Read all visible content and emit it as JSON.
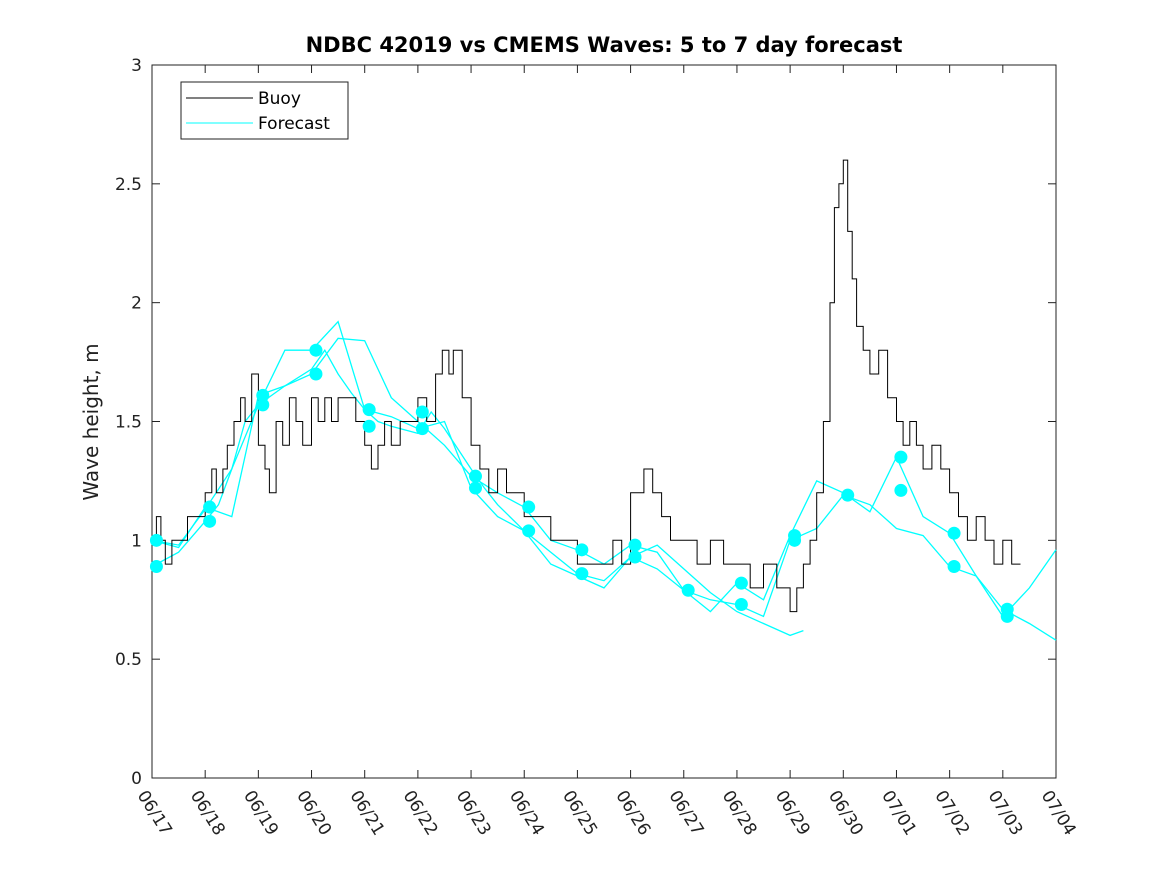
{
  "chart_data": {
    "type": "line",
    "title": "NDBC 42019 vs CMEMS Waves: 5 to 7 day forecast",
    "ylabel": "Wave height, m",
    "xlabel": "",
    "xlim": [
      "06/17",
      "07/04"
    ],
    "ylim": [
      0,
      3
    ],
    "x_unit": "days",
    "x_tick_labels": [
      "06/17",
      "06/18",
      "06/19",
      "06/20",
      "06/21",
      "06/22",
      "06/23",
      "06/24",
      "06/25",
      "06/26",
      "06/27",
      "06/28",
      "06/29",
      "06/30",
      "07/01",
      "07/02",
      "07/03",
      "07/04"
    ],
    "y_ticks": [
      0,
      0.5,
      1,
      1.5,
      2,
      2.5,
      3
    ],
    "y_tick_labels": [
      "0",
      "0.5",
      "1",
      "1.5",
      "2",
      "2.5",
      "3"
    ],
    "legend": {
      "placement": "top-left",
      "entries": [
        {
          "label": "Buoy",
          "color": "#000000"
        },
        {
          "label": "Forecast",
          "color": "#00ffff"
        }
      ]
    },
    "series": [
      {
        "name": "Buoy",
        "color": "#000000",
        "points": [
          [
            "06/17 00:00",
            1.0
          ],
          [
            "06/17 02:00",
            1.1
          ],
          [
            "06/17 04:00",
            1.0
          ],
          [
            "06/17 06:00",
            0.9
          ],
          [
            "06/17 09:00",
            1.0
          ],
          [
            "06/17 12:00",
            1.0
          ],
          [
            "06/17 16:00",
            1.1
          ],
          [
            "06/17 20:00",
            1.1
          ],
          [
            "06/18 00:00",
            1.2
          ],
          [
            "06/18 03:00",
            1.3
          ],
          [
            "06/18 05:00",
            1.2
          ],
          [
            "06/18 08:00",
            1.3
          ],
          [
            "06/18 10:00",
            1.4
          ],
          [
            "06/18 13:00",
            1.5
          ],
          [
            "06/18 16:00",
            1.6
          ],
          [
            "06/18 18:00",
            1.5
          ],
          [
            "06/18 21:00",
            1.7
          ],
          [
            "06/19 00:00",
            1.4
          ],
          [
            "06/19 03:00",
            1.3
          ],
          [
            "06/19 05:00",
            1.2
          ],
          [
            "06/19 08:00",
            1.5
          ],
          [
            "06/19 11:00",
            1.4
          ],
          [
            "06/19 14:00",
            1.6
          ],
          [
            "06/19 17:00",
            1.5
          ],
          [
            "06/19 20:00",
            1.4
          ],
          [
            "06/20 00:00",
            1.6
          ],
          [
            "06/20 03:00",
            1.5
          ],
          [
            "06/20 06:00",
            1.6
          ],
          [
            "06/20 09:00",
            1.5
          ],
          [
            "06/20 12:00",
            1.6
          ],
          [
            "06/20 16:00",
            1.6
          ],
          [
            "06/20 20:00",
            1.5
          ],
          [
            "06/21 00:00",
            1.4
          ],
          [
            "06/21 03:00",
            1.3
          ],
          [
            "06/21 06:00",
            1.4
          ],
          [
            "06/21 09:00",
            1.5
          ],
          [
            "06/21 12:00",
            1.4
          ],
          [
            "06/21 16:00",
            1.5
          ],
          [
            "06/21 20:00",
            1.5
          ],
          [
            "06/22 00:00",
            1.6
          ],
          [
            "06/22 04:00",
            1.5
          ],
          [
            "06/22 08:00",
            1.7
          ],
          [
            "06/22 11:00",
            1.8
          ],
          [
            "06/22 14:00",
            1.7
          ],
          [
            "06/22 16:00",
            1.8
          ],
          [
            "06/22 20:00",
            1.6
          ],
          [
            "06/23 00:00",
            1.4
          ],
          [
            "06/23 04:00",
            1.3
          ],
          [
            "06/23 08:00",
            1.2
          ],
          [
            "06/23 12:00",
            1.3
          ],
          [
            "06/23 16:00",
            1.2
          ],
          [
            "06/23 20:00",
            1.2
          ],
          [
            "06/24 00:00",
            1.1
          ],
          [
            "06/24 06:00",
            1.1
          ],
          [
            "06/24 12:00",
            1.0
          ],
          [
            "06/24 18:00",
            1.0
          ],
          [
            "06/25 00:00",
            0.9
          ],
          [
            "06/25 08:00",
            0.9
          ],
          [
            "06/25 16:00",
            1.0
          ],
          [
            "06/25 20:00",
            0.9
          ],
          [
            "06/26 00:00",
            1.2
          ],
          [
            "06/26 06:00",
            1.3
          ],
          [
            "06/26 10:00",
            1.2
          ],
          [
            "06/26 14:00",
            1.1
          ],
          [
            "06/26 18:00",
            1.0
          ],
          [
            "06/27 00:00",
            1.0
          ],
          [
            "06/27 06:00",
            0.9
          ],
          [
            "06/27 12:00",
            1.0
          ],
          [
            "06/27 18:00",
            0.9
          ],
          [
            "06/28 00:00",
            0.9
          ],
          [
            "06/28 06:00",
            0.8
          ],
          [
            "06/28 12:00",
            0.9
          ],
          [
            "06/28 18:00",
            0.8
          ],
          [
            "06/29 00:00",
            0.7
          ],
          [
            "06/29 03:00",
            0.8
          ],
          [
            "06/29 06:00",
            0.9
          ],
          [
            "06/29 09:00",
            1.0
          ],
          [
            "06/29 12:00",
            1.2
          ],
          [
            "06/29 15:00",
            1.5
          ],
          [
            "06/29 18:00",
            2.0
          ],
          [
            "06/29 20:00",
            2.4
          ],
          [
            "06/29 22:00",
            2.5
          ],
          [
            "06/30 00:00",
            2.6
          ],
          [
            "06/30 02:00",
            2.3
          ],
          [
            "06/30 04:00",
            2.1
          ],
          [
            "06/30 06:00",
            1.9
          ],
          [
            "06/30 09:00",
            1.8
          ],
          [
            "06/30 12:00",
            1.7
          ],
          [
            "06/30 16:00",
            1.8
          ],
          [
            "06/30 20:00",
            1.6
          ],
          [
            "07/01 00:00",
            1.5
          ],
          [
            "07/01 03:00",
            1.4
          ],
          [
            "07/01 06:00",
            1.5
          ],
          [
            "07/01 09:00",
            1.4
          ],
          [
            "07/01 12:00",
            1.3
          ],
          [
            "07/01 16:00",
            1.4
          ],
          [
            "07/01 20:00",
            1.3
          ],
          [
            "07/02 00:00",
            1.2
          ],
          [
            "07/02 04:00",
            1.1
          ],
          [
            "07/02 08:00",
            1.0
          ],
          [
            "07/02 12:00",
            1.1
          ],
          [
            "07/02 16:00",
            1.0
          ],
          [
            "07/02 20:00",
            0.9
          ],
          [
            "07/03 00:00",
            1.0
          ],
          [
            "07/03 04:00",
            0.9
          ],
          [
            "07/03 08:00",
            0.9
          ]
        ]
      },
      {
        "name": "Forecast",
        "color": "#00ffff",
        "runs": [
          [
            [
              "06/17 00:00",
              0.89
            ],
            [
              "06/17 12:00",
              0.95
            ],
            [
              "06/18 00:00",
              1.08
            ],
            [
              "06/18 06:00",
              1.15
            ],
            [
              "06/18 12:00",
              1.3
            ],
            [
              "06/18 18:00",
              1.5
            ],
            [
              "06/19 00:00",
              1.57
            ],
            [
              "06/19 12:00",
              1.65
            ],
            [
              "06/20 00:00",
              1.72
            ],
            [
              "06/20 06:00",
              1.8
            ],
            [
              "06/20 12:00",
              1.7
            ],
            [
              "06/20 18:00",
              1.62
            ],
            [
              "06/21 00:00",
              1.55
            ],
            [
              "06/21 06:00",
              1.5
            ],
            [
              "06/21 12:00",
              1.48
            ],
            [
              "06/22 00:00",
              1.45
            ],
            [
              "06/22 06:00",
              1.54
            ],
            [
              "06/22 12:00",
              1.47
            ],
            [
              "06/23 00:00",
              1.3
            ],
            [
              "06/23 06:00",
              1.22
            ],
            [
              "06/23 12:00",
              1.15
            ],
            [
              "06/24 00:00",
              1.04
            ],
            [
              "06/24 12:00",
              0.95
            ],
            [
              "06/25 00:00",
              0.86
            ],
            [
              "06/25 12:00",
              0.83
            ],
            [
              "06/26 00:00",
              0.93
            ],
            [
              "06/26 12:00",
              0.98
            ],
            [
              "06/27 00:00",
              0.88
            ],
            [
              "06/27 12:00",
              0.78
            ],
            [
              "06/28 00:00",
              0.7
            ],
            [
              "06/28 12:00",
              0.65
            ],
            [
              "06/29 00:00",
              0.6
            ],
            [
              "06/29 06:00",
              0.62
            ]
          ],
          [
            [
              "06/17 00:00",
              1.0
            ],
            [
              "06/17 12:00",
              0.97
            ],
            [
              "06/18 00:00",
              1.14
            ],
            [
              "06/18 12:00",
              1.1
            ],
            [
              "06/19 00:00",
              1.61
            ],
            [
              "06/19 12:00",
              1.65
            ],
            [
              "06/20 00:00",
              1.7
            ],
            [
              "06/20 12:00",
              1.85
            ],
            [
              "06/21 00:00",
              1.84
            ],
            [
              "06/21 12:00",
              1.6
            ],
            [
              "06/22 00:00",
              1.5
            ],
            [
              "06/22 12:00",
              1.4
            ],
            [
              "06/23 00:00",
              1.27
            ],
            [
              "06/23 12:00",
              1.2
            ],
            [
              "06/24 00:00",
              1.14
            ],
            [
              "06/24 12:00",
              1.0
            ],
            [
              "06/25 00:00",
              0.96
            ],
            [
              "06/25 12:00",
              0.9
            ],
            [
              "06/26 00:00",
              0.98
            ],
            [
              "06/26 12:00",
              0.95
            ],
            [
              "06/27 00:00",
              0.79
            ],
            [
              "06/27 12:00",
              0.75
            ],
            [
              "06/28 00:00",
              0.73
            ],
            [
              "06/28 12:00",
              0.68
            ],
            [
              "06/29 00:00",
              1.0
            ],
            [
              "06/29 12:00",
              1.05
            ],
            [
              "06/30 00:00",
              1.19
            ],
            [
              "06/30 12:00",
              1.15
            ],
            [
              "07/01 00:00",
              1.05
            ],
            [
              "07/01 12:00",
              1.02
            ],
            [
              "07/02 00:00",
              0.89
            ],
            [
              "07/02 12:00",
              0.85
            ],
            [
              "07/03 00:00",
              0.71
            ],
            [
              "07/03 12:00",
              0.65
            ],
            [
              "07/04 00:00",
              0.58
            ]
          ],
          [
            [
              "06/17 00:00",
              1.0
            ],
            [
              "06/17 12:00",
              0.98
            ],
            [
              "06/18 00:00",
              1.13
            ],
            [
              "06/18 12:00",
              1.3
            ],
            [
              "06/19 00:00",
              1.57
            ],
            [
              "06/19 12:00",
              1.8
            ],
            [
              "06/20 00:00",
              1.8
            ],
            [
              "06/20 12:00",
              1.92
            ],
            [
              "06/21 00:00",
              1.55
            ],
            [
              "06/21 12:00",
              1.52
            ],
            [
              "06/22 00:00",
              1.47
            ],
            [
              "06/22 12:00",
              1.5
            ],
            [
              "06/23 00:00",
              1.22
            ],
            [
              "06/23 12:00",
              1.1
            ],
            [
              "06/24 00:00",
              1.04
            ],
            [
              "06/24 12:00",
              0.9
            ],
            [
              "06/25 00:00",
              0.85
            ],
            [
              "06/25 12:00",
              0.8
            ],
            [
              "06/26 00:00",
              0.93
            ],
            [
              "06/26 12:00",
              0.88
            ],
            [
              "06/27 00:00",
              0.79
            ],
            [
              "06/27 12:00",
              0.7
            ],
            [
              "06/28 00:00",
              0.82
            ],
            [
              "06/28 12:00",
              0.75
            ],
            [
              "06/29 00:00",
              1.02
            ],
            [
              "06/29 12:00",
              1.25
            ],
            [
              "06/30 00:00",
              1.2
            ],
            [
              "06/30 12:00",
              1.12
            ],
            [
              "07/01 00:00",
              1.35
            ],
            [
              "07/01 12:00",
              1.1
            ],
            [
              "07/02 00:00",
              1.03
            ],
            [
              "07/02 12:00",
              0.85
            ],
            [
              "07/03 00:00",
              0.68
            ],
            [
              "07/03 12:00",
              0.8
            ],
            [
              "07/04 00:00",
              0.96
            ]
          ]
        ],
        "markers": [
          [
            "06/17 02:00",
            1.0
          ],
          [
            "06/17 02:00",
            0.89
          ],
          [
            "06/18 02:00",
            1.14
          ],
          [
            "06/18 02:00",
            1.08
          ],
          [
            "06/19 02:00",
            1.61
          ],
          [
            "06/19 02:00",
            1.57
          ],
          [
            "06/20 02:00",
            1.8
          ],
          [
            "06/20 02:00",
            1.7
          ],
          [
            "06/21 02:00",
            1.55
          ],
          [
            "06/21 02:00",
            1.48
          ],
          [
            "06/22 02:00",
            1.54
          ],
          [
            "06/22 02:00",
            1.47
          ],
          [
            "06/23 02:00",
            1.27
          ],
          [
            "06/23 02:00",
            1.22
          ],
          [
            "06/24 02:00",
            1.14
          ],
          [
            "06/24 02:00",
            1.04
          ],
          [
            "06/25 02:00",
            0.96
          ],
          [
            "06/25 02:00",
            0.86
          ],
          [
            "06/26 02:00",
            0.98
          ],
          [
            "06/26 02:00",
            0.93
          ],
          [
            "06/27 02:00",
            0.79
          ],
          [
            "06/28 02:00",
            0.82
          ],
          [
            "06/28 02:00",
            0.73
          ],
          [
            "06/29 02:00",
            1.02
          ],
          [
            "06/29 02:00",
            1.0
          ],
          [
            "06/30 02:00",
            1.19
          ],
          [
            "07/01 02:00",
            1.35
          ],
          [
            "07/01 02:00",
            1.21
          ],
          [
            "07/02 02:00",
            1.03
          ],
          [
            "07/02 02:00",
            0.89
          ],
          [
            "07/03 02:00",
            0.71
          ],
          [
            "07/03 02:00",
            0.68
          ]
        ]
      }
    ]
  }
}
